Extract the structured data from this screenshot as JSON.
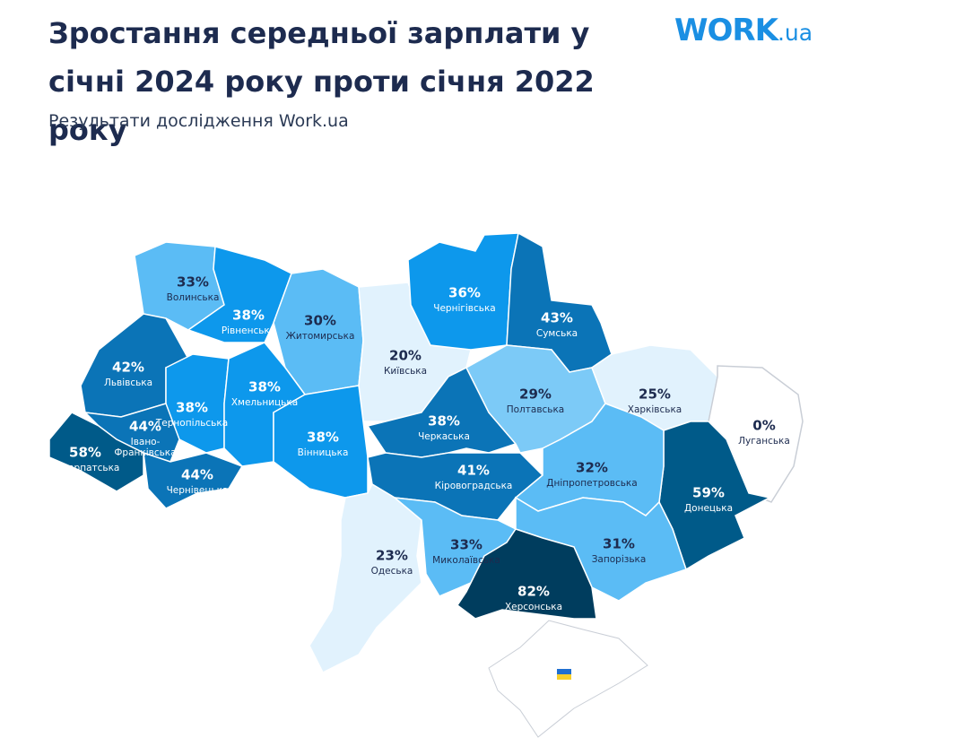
{
  "header": {
    "title": "Зростання середньої зарплати у січні 2024 року проти січня 2022 року",
    "subtitle": "Результати дослідження Work.ua",
    "logo": {
      "main": "WORK",
      "suffix": ".ua"
    }
  },
  "map": {
    "regions": [
      {
        "name": "Волинська",
        "value": "33%",
        "color": "#5bbcf5"
      },
      {
        "name": "Рівненська",
        "value": "38%",
        "color": "#0d98ec"
      },
      {
        "name": "Житомирська",
        "value": "30%",
        "color": "#5bbcf5"
      },
      {
        "name": "Київська",
        "value": "20%",
        "color": "#e1f2fd"
      },
      {
        "name": "Чернігівська",
        "value": "36%",
        "color": "#0d98ec"
      },
      {
        "name": "Сумська",
        "value": "43%",
        "color": "#0b74b7"
      },
      {
        "name": "Львівська",
        "value": "42%",
        "color": "#0b74b7"
      },
      {
        "name": "Тернопільська",
        "value": "38%",
        "color": "#0d98ec"
      },
      {
        "name": "Хмельницька",
        "value": "38%",
        "color": "#0d98ec"
      },
      {
        "name": "Вінницька",
        "value": "38%",
        "color": "#0d98ec"
      },
      {
        "name": "Івано-Франківська",
        "value": "44%",
        "color": "#0b74b7"
      },
      {
        "name": "Закарпатська",
        "value": "58%",
        "color": "#005a89"
      },
      {
        "name": "Чернівецька",
        "value": "44%",
        "color": "#0b74b7"
      },
      {
        "name": "Черкаська",
        "value": "38%",
        "color": "#0b74b7"
      },
      {
        "name": "Кіровоградська",
        "value": "41%",
        "color": "#0b74b7"
      },
      {
        "name": "Полтавська",
        "value": "29%",
        "color": "#7ccaf7"
      },
      {
        "name": "Харківська",
        "value": "25%",
        "color": "#e1f2fd"
      },
      {
        "name": "Луганська",
        "value": "0%",
        "color": "#ffffff"
      },
      {
        "name": "Донецька",
        "value": "59%",
        "color": "#005a89"
      },
      {
        "name": "Дніпропетровська",
        "value": "32%",
        "color": "#5bbcf5"
      },
      {
        "name": "Одеська",
        "value": "23%",
        "color": "#e1f2fd"
      },
      {
        "name": "Миколаївська",
        "value": "33%",
        "color": "#5bbcf5"
      },
      {
        "name": "Запорізька",
        "value": "31%",
        "color": "#5bbcf5"
      },
      {
        "name": "Херсонська",
        "value": "82%",
        "color": "#003d5e"
      }
    ]
  }
}
